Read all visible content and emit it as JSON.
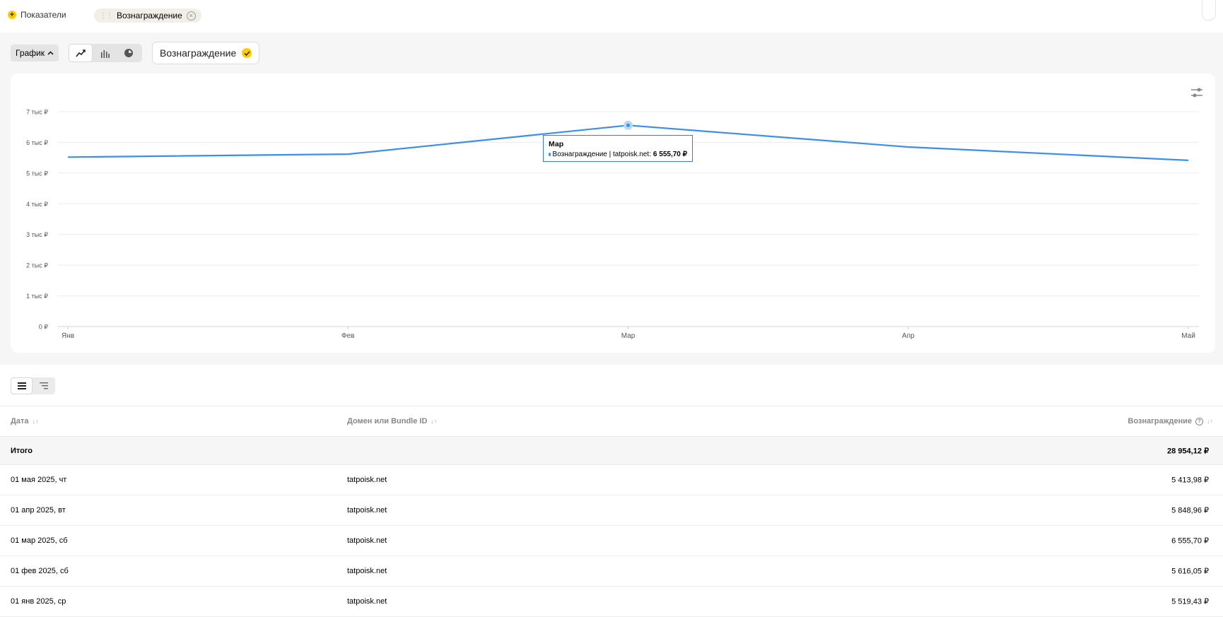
{
  "topbar": {
    "add_metrics_label": "Показатели",
    "chip_label": "Вознаграждение"
  },
  "controls": {
    "graph_button_label": "График",
    "chart_types": [
      "line-chart-icon",
      "bar-chart-icon",
      "pie-chart-icon"
    ],
    "active_chart_type": "line",
    "metric_toggle_label": "Вознаграждение"
  },
  "chart_data": {
    "type": "line",
    "categories": [
      "Янв",
      "Фев",
      "Мар",
      "Апр",
      "Май"
    ],
    "series": [
      {
        "values": [
          5519.43,
          5616.05,
          6555.7,
          5848.96,
          5413.98
        ],
        "color": "#3d8ee8"
      }
    ],
    "y_ticks": [
      "0 ₽",
      "1 тыс ₽",
      "2 тыс ₽",
      "3 тыс ₽",
      "4 тыс ₽",
      "5 тыс ₽",
      "6 тыс ₽",
      "7 тыс ₽"
    ],
    "ylim": [
      0,
      7000
    ],
    "grid": true,
    "tooltip": {
      "title": "Мар",
      "series_label": "Вознаграждение | tatpoisk.net:",
      "value": "6 555,70 ₽"
    }
  },
  "table": {
    "headers": {
      "date": "Дата",
      "domain": "Домен или Bundle ID",
      "reward": "Вознаграждение"
    },
    "total": {
      "label": "Итого",
      "value": "28 954,12 ₽"
    },
    "rows": [
      {
        "date": "01 мая 2025, чт",
        "domain": "tatpoisk.net",
        "reward": "5 413,98 ₽"
      },
      {
        "date": "01 апр 2025, вт",
        "domain": "tatpoisk.net",
        "reward": "5 848,96 ₽"
      },
      {
        "date": "01 мар 2025, сб",
        "domain": "tatpoisk.net",
        "reward": "6 555,70 ₽"
      },
      {
        "date": "01 фев 2025, сб",
        "domain": "tatpoisk.net",
        "reward": "5 616,05 ₽"
      },
      {
        "date": "01 янв 2025, ср",
        "domain": "tatpoisk.net",
        "reward": "5 519,43 ₽"
      }
    ]
  },
  "colors": {
    "accent": "#ffcc00",
    "line": "#3d8ee8"
  }
}
